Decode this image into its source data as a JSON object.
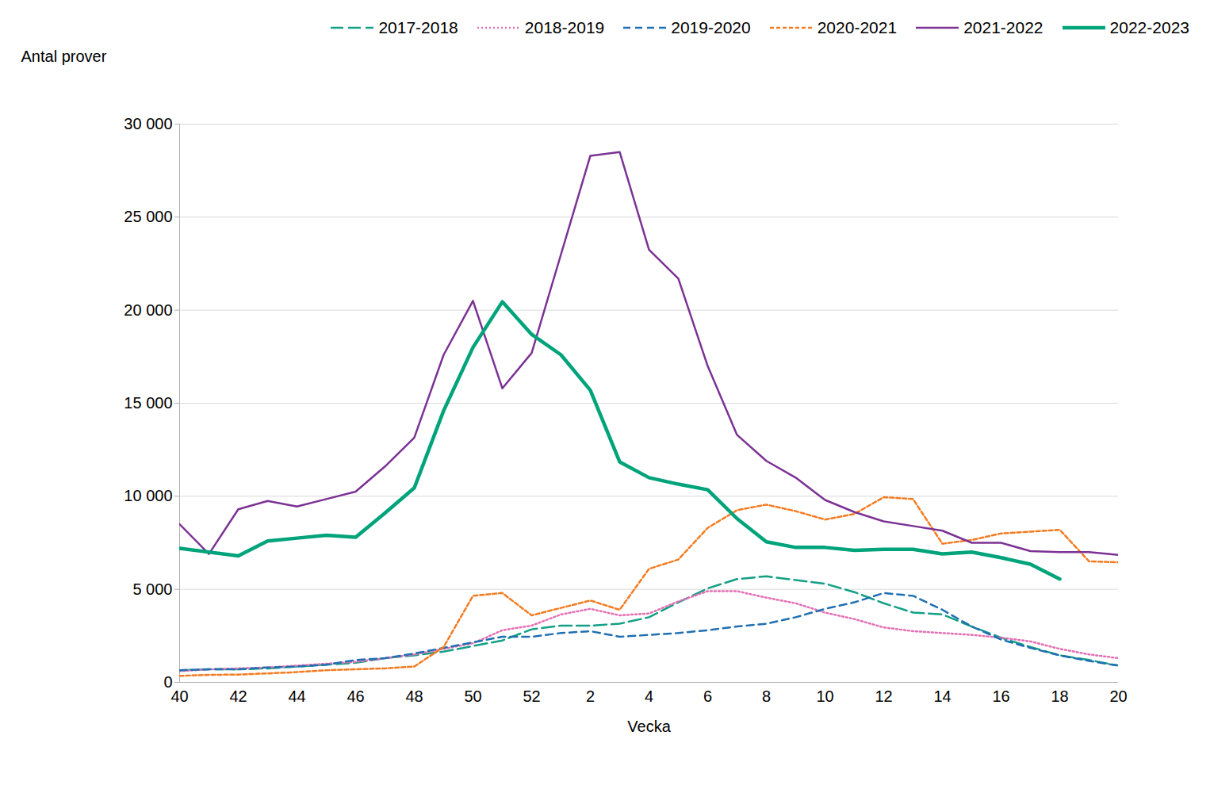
{
  "chart_data": {
    "type": "line",
    "x_label": "Vecka",
    "y_label": "Antal prover",
    "categories": [
      40,
      null,
      42,
      null,
      44,
      null,
      46,
      null,
      48,
      null,
      50,
      null,
      52,
      null,
      2,
      null,
      4,
      null,
      6,
      null,
      8,
      null,
      10,
      null,
      12,
      null,
      14,
      null,
      16,
      null,
      18,
      null,
      20
    ],
    "ylim": [
      0,
      30000
    ],
    "yticks": [
      0,
      {
        "value": 5000,
        "label": "5 000"
      },
      {
        "value": 10000,
        "label": "10 000"
      },
      {
        "value": 15000,
        "label": "15 000"
      },
      {
        "value": 20000,
        "label": "20 000"
      },
      {
        "value": 25000,
        "label": "25 000"
      },
      {
        "value": 30000,
        "label": "30 000"
      }
    ],
    "grid": true,
    "legend": "top",
    "series": [
      {
        "name": "2017-2018",
        "color": "#13a085",
        "line_style": "longdash",
        "values": [
          650,
          700,
          700,
          750,
          850,
          950,
          1050,
          1300,
          1450,
          1650,
          1950,
          2250,
          2850,
          3050,
          3050,
          3150,
          3500,
          4300,
          5050,
          5550,
          5700,
          5500,
          5300,
          4850,
          4250,
          3750,
          3650,
          3000,
          2400,
          1900,
          1450,
          1200,
          900
        ]
      },
      {
        "name": "2018-2019",
        "color": "#e36fb4",
        "line_style": "dotted",
        "values": [
          600,
          700,
          750,
          800,
          900,
          1000,
          1100,
          1300,
          1500,
          1800,
          2100,
          2800,
          3050,
          3650,
          3950,
          3600,
          3700,
          4350,
          4900,
          4900,
          4550,
          4250,
          3750,
          3400,
          2950,
          2750,
          2650,
          2550,
          2400,
          2200,
          1800,
          1500,
          1300
        ]
      },
      {
        "name": "2019-2020",
        "color": "#1f6fb2",
        "line_style": "dashed",
        "values": [
          650,
          700,
          700,
          800,
          850,
          950,
          1200,
          1300,
          1550,
          1850,
          2150,
          2450,
          2450,
          2650,
          2750,
          2450,
          2550,
          2650,
          2800,
          3000,
          3150,
          3500,
          3950,
          4300,
          4800,
          4650,
          3900,
          3000,
          2300,
          1850,
          1450,
          1150,
          900
        ]
      },
      {
        "name": "2020-2021",
        "color": "#f47b20",
        "line_style": "shortdash",
        "values": [
          350,
          400,
          420,
          480,
          550,
          650,
          700,
          750,
          850,
          1900,
          4650,
          4800,
          3600,
          4000,
          4400,
          3900,
          6100,
          6600,
          8300,
          9250,
          9550,
          9200,
          8750,
          9050,
          9950,
          9850,
          7450,
          7650,
          8000,
          8100,
          8200,
          6500,
          6450
        ]
      },
      {
        "name": "2021-2022",
        "color": "#7b3294",
        "line_style": "solid",
        "values": [
          8500,
          6900,
          9300,
          9750,
          9450,
          9850,
          10250,
          11600,
          13150,
          17600,
          20500,
          15800,
          17700,
          23000,
          28300,
          28500,
          23250,
          21700,
          17000,
          13300,
          11900,
          11000,
          9800,
          9150,
          8650,
          8400,
          8150,
          7500,
          7500,
          7050,
          7000,
          7000,
          6850
        ]
      },
      {
        "name": "2022-2023",
        "color": "#00a37a",
        "line_style": "solid",
        "values": [
          7200,
          7000,
          6800,
          7600,
          7750,
          7900,
          7800,
          9100,
          10450,
          14600,
          18000,
          20450,
          18700,
          17600,
          15700,
          11850,
          11000,
          10650,
          10350,
          8800,
          7550,
          7250,
          7250,
          7100,
          7150,
          7150,
          6900,
          7000,
          6700,
          6350,
          5550,
          null,
          null
        ]
      }
    ]
  }
}
